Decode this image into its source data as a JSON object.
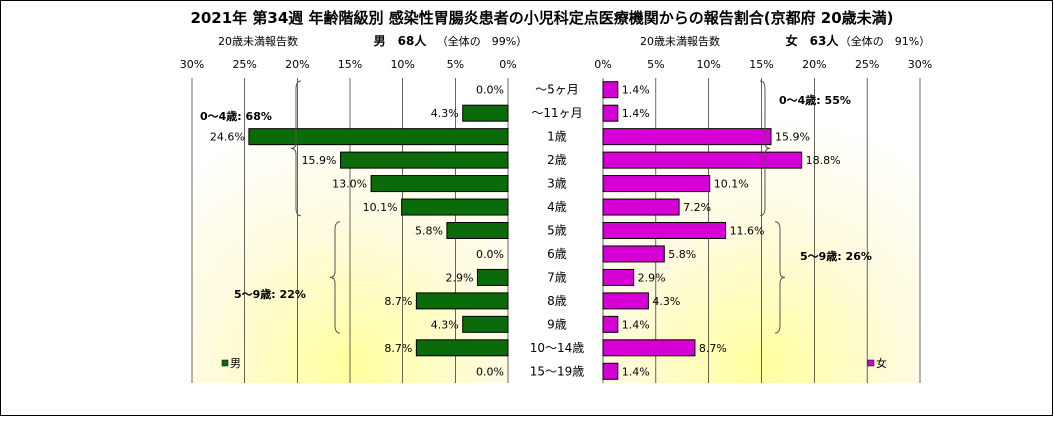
{
  "chart_data": {
    "type": "bar",
    "orientation": "horizontal-butterfly",
    "title": "2021年 第34週 年齢階級別 感染性胃腸炎患者の小児科定点医療機関からの報告割合(京都府 20歳未満)",
    "categories": [
      "～5ヶ月",
      "～11ヶ月",
      "1歳",
      "2歳",
      "3歳",
      "4歳",
      "5歳",
      "6歳",
      "7歳",
      "8歳",
      "9歳",
      "10～14歳",
      "15～19歳"
    ],
    "xlim": [
      0,
      30
    ],
    "ticks": [
      "30%",
      "25%",
      "20%",
      "15%",
      "10%",
      "5%",
      "0%"
    ],
    "ticks_right": [
      "0%",
      "5%",
      "10%",
      "15%",
      "20%",
      "25%",
      "30%"
    ],
    "grid": true,
    "series": [
      {
        "name": "男",
        "side": "left",
        "color": "#0b6b0b",
        "header_sub": "20歳未満報告数",
        "header_main": "男　68人",
        "header_note": "（全体の　99%）",
        "values": [
          0.0,
          4.3,
          24.6,
          15.9,
          13.0,
          10.1,
          5.8,
          0.0,
          2.9,
          8.7,
          4.3,
          8.7,
          0.0
        ],
        "labels": [
          "0.0%",
          "4.3%",
          "24.6%",
          "15.9%",
          "13.0%",
          "10.1%",
          "5.8%",
          "0.0%",
          "2.9%",
          "8.7%",
          "4.3%",
          "8.7%",
          "0.0%"
        ],
        "brackets": [
          {
            "text": "0～4歳: 68%",
            "from": 0,
            "to": 5
          },
          {
            "text": "5～9歳: 22%",
            "from": 6,
            "to": 10
          }
        ],
        "legend_text": "男"
      },
      {
        "name": "女",
        "side": "right",
        "color": "#d400d4",
        "header_sub": "20歳未満報告数",
        "header_main": "女　63人",
        "header_note": "（全体の　91%）",
        "values": [
          1.4,
          1.4,
          15.9,
          18.8,
          10.1,
          7.2,
          11.6,
          5.8,
          2.9,
          4.3,
          1.4,
          8.7,
          1.4
        ],
        "labels": [
          "1.4%",
          "1.4%",
          "15.9%",
          "18.8%",
          "10.1%",
          "7.2%",
          "11.6%",
          "5.8%",
          "2.9%",
          "4.3%",
          "1.4%",
          "8.7%",
          "1.4%"
        ],
        "brackets": [
          {
            "text": "0～4歳: 55%",
            "from": 0,
            "to": 5
          },
          {
            "text": "5～9歳: 26%",
            "from": 6,
            "to": 10
          }
        ],
        "legend_text": "女"
      }
    ]
  }
}
